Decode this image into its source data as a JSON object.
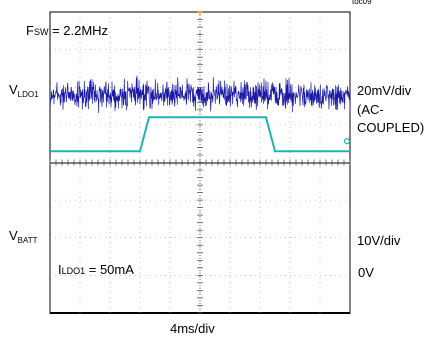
{
  "chart_data": {
    "type": "line",
    "figure_id": "toc09",
    "annotations": {
      "fsw": {
        "prefix": "F",
        "sub": "SW",
        "value": " = 2.2MHz"
      },
      "iload": {
        "prefix": "I",
        "sub": "LDO1",
        "value": " = 50mA"
      }
    },
    "xlabel": "4ms/div",
    "x_divisions": 10,
    "y_divisions": 8,
    "grid": "dotted center crosshair with minor ticks",
    "series": [
      {
        "name_prefix": "V",
        "name_sub": "LDO1",
        "color": "#1a1aa6",
        "scale": "20mV/div",
        "scale_note": [
          "(AC-",
          "COUPLED)"
        ],
        "coupling": "AC",
        "description": "noise around mean level, amplitude about 0.4 div",
        "center_div": 1.8,
        "noise_amplitude_div": 0.4
      },
      {
        "name_prefix": "V",
        "name_sub": "BATT",
        "color": "#1fb3b3",
        "scale": "10V/div",
        "zero_label": "0V",
        "zero_div": -1.7,
        "points_div": [
          [
            0,
            0.3
          ],
          [
            3.0,
            0.3
          ],
          [
            3.3,
            1.2
          ],
          [
            7.2,
            1.2
          ],
          [
            7.5,
            0.3
          ],
          [
            10,
            0.3
          ]
        ]
      }
    ]
  }
}
